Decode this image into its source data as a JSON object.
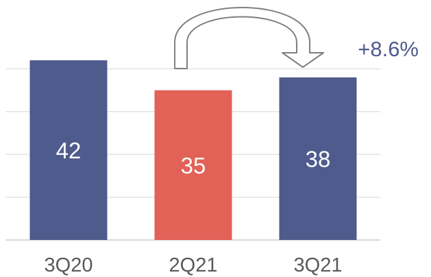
{
  "chart_data": {
    "type": "bar",
    "categories": [
      "3Q20",
      "2Q21",
      "3Q21"
    ],
    "values": [
      42,
      35,
      38
    ],
    "ylim": [
      0,
      50
    ],
    "grid": true,
    "legend": "none",
    "annotation": {
      "text": "+8.6%",
      "from_category": "2Q21",
      "to_category": "3Q21"
    },
    "colors": {
      "bars": [
        "#4f5b8d",
        "#e26257",
        "#4f5b8d"
      ],
      "annotation_text": "#4f5b8d",
      "arrow_stroke": "#7f7f7f",
      "gridline": "#e3e3e3",
      "tick_text": "#595959"
    }
  }
}
